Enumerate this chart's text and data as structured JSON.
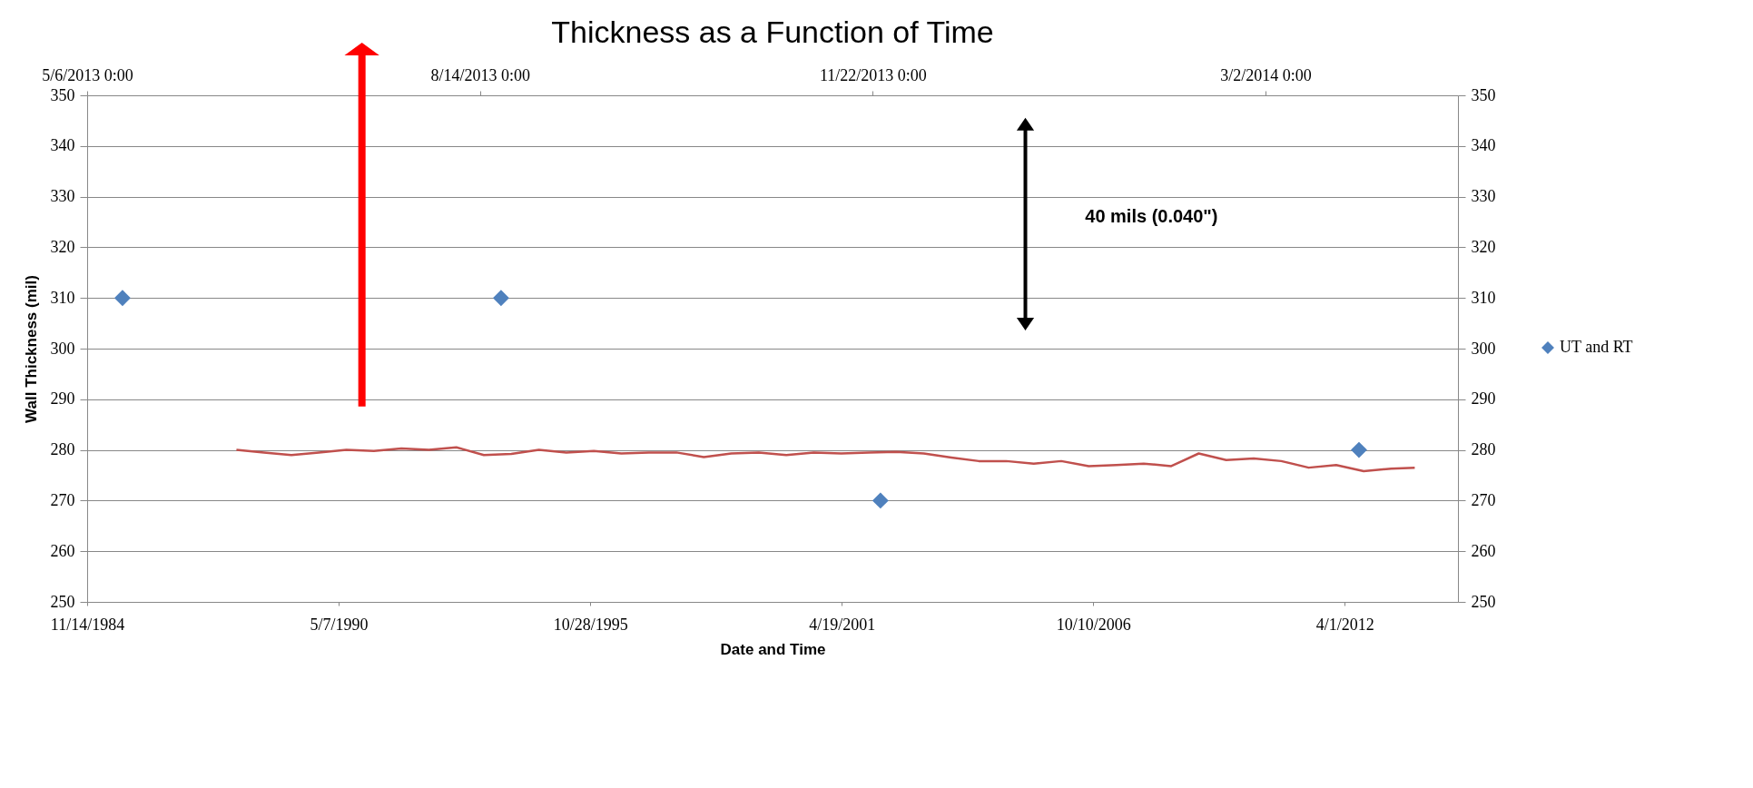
{
  "chart_data": {
    "type": "line",
    "title": "Thickness as a Function of Time",
    "xlabel": "Date and Time",
    "ylabel": "Wall Thickness (mil)",
    "xlim": [
      "1984-11-14",
      "2014-09-18"
    ],
    "xticks": [
      {
        "value": "1984-11-14",
        "label": "11/14/1984"
      },
      {
        "value": "1990-05-07",
        "label": "5/7/1990"
      },
      {
        "value": "1995-10-28",
        "label": "10/28/1995"
      },
      {
        "value": "2001-04-19",
        "label": "4/19/2001"
      },
      {
        "value": "2006-10-10",
        "label": "10/10/2006"
      },
      {
        "value": "2012-04-01",
        "label": "4/1/2012"
      }
    ],
    "x2lim": [
      "2013-05-06",
      "2014-04-20"
    ],
    "x2ticks": [
      {
        "value": "2013-05-06",
        "label": "5/6/2013 0:00"
      },
      {
        "value": "2013-08-14",
        "label": "8/14/2013 0:00"
      },
      {
        "value": "2013-11-22",
        "label": "11/22/2013 0:00"
      },
      {
        "value": "2014-03-02",
        "label": "3/2/2014 0:00"
      }
    ],
    "ylim": [
      250,
      350
    ],
    "yticks": [
      250,
      260,
      270,
      280,
      290,
      300,
      310,
      320,
      330,
      340,
      350
    ],
    "y2lim": [
      250,
      350
    ],
    "y2ticks": [
      250,
      260,
      270,
      280,
      290,
      300,
      310,
      320,
      330,
      340,
      350
    ],
    "grid": "y",
    "legend": "right",
    "annotations": [
      "40 mils (0.040\")"
    ],
    "series": [
      {
        "name": "UT and RT",
        "type": "scatter",
        "marker": "diamond",
        "color": "#4f81bd",
        "x": [
          "1985-08-22",
          "1993-11-18",
          "2002-02-21",
          "2012-07-23"
        ],
        "values": [
          310,
          310,
          270,
          280
        ]
      },
      {
        "axis": "x2",
        "marker": "none",
        "line_style": "solid",
        "color": "#c0504d",
        "x": [
          "2013-06-13",
          "2013-06-20",
          "2013-06-27",
          "2013-07-04",
          "2013-07-11",
          "2013-07-18",
          "2013-07-25",
          "2013-08-01",
          "2013-08-08",
          "2013-08-15",
          "2013-08-22",
          "2013-08-29",
          "2013-09-05",
          "2013-09-12",
          "2013-09-19",
          "2013-09-26",
          "2013-10-03",
          "2013-10-10",
          "2013-10-17",
          "2013-10-24",
          "2013-10-31",
          "2013-11-07",
          "2013-11-14",
          "2013-11-21",
          "2013-11-28",
          "2013-12-05",
          "2013-12-12",
          "2013-12-19",
          "2013-12-26",
          "2014-01-02",
          "2014-01-09",
          "2014-01-16",
          "2014-01-23",
          "2014-01-30",
          "2014-02-06",
          "2014-02-13",
          "2014-02-20",
          "2014-02-27",
          "2014-03-06",
          "2014-03-13",
          "2014-03-20",
          "2014-03-27",
          "2014-04-03",
          "2014-04-09"
        ],
        "values": [
          280,
          279.5,
          279,
          279.5,
          280,
          279.8,
          280.3,
          280,
          280.5,
          279,
          279.2,
          280,
          279.5,
          279.8,
          279.3,
          279.5,
          279.5,
          278.6,
          279.3,
          279.5,
          279,
          279.5,
          279.3,
          279.5,
          279.6,
          279.3,
          278.5,
          277.8,
          277.8,
          277.3,
          277.8,
          276.8,
          277,
          277.3,
          276.8,
          279.3,
          278,
          278.3,
          277.8,
          276.5,
          277,
          275.8,
          276.3,
          276.5
        ]
      }
    ]
  }
}
